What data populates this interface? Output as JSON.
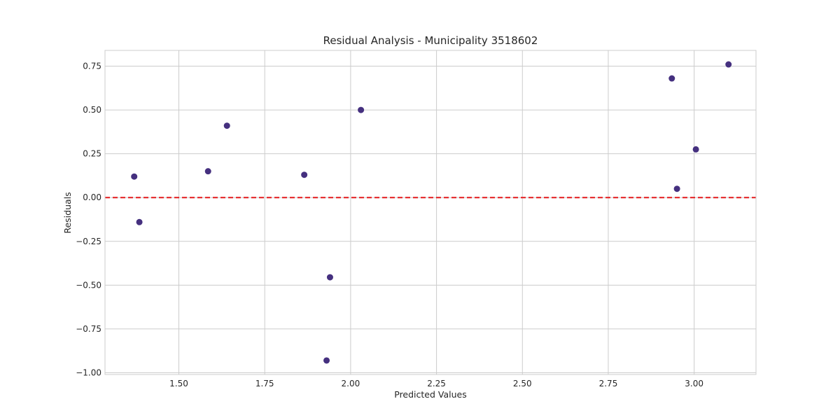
{
  "chart_data": {
    "type": "scatter",
    "title": "Residual Analysis - Municipality 3518602",
    "xlabel": "Predicted Values",
    "ylabel": "Residuals",
    "xlim": [
      1.285,
      3.18
    ],
    "ylim": [
      -1.01,
      0.84
    ],
    "xticks": [
      1.5,
      1.75,
      2.0,
      2.25,
      2.5,
      2.75,
      3.0
    ],
    "xtick_labels": [
      "1.50",
      "1.75",
      "2.00",
      "2.25",
      "2.50",
      "2.75",
      "3.00"
    ],
    "yticks": [
      0.75,
      0.5,
      0.25,
      0.0,
      -0.25,
      -0.5,
      -0.75,
      -1.0
    ],
    "ytick_labels": [
      "0.75",
      "0.50",
      "0.25",
      "0.00",
      "−0.25",
      "−0.50",
      "−0.75",
      "−1.00"
    ],
    "grid": true,
    "reference_line": {
      "y": 0.0,
      "style": "dashed",
      "color": "#e41a1c"
    },
    "series": [
      {
        "color": "#45307f",
        "points": [
          {
            "x": 1.37,
            "y": 0.12
          },
          {
            "x": 1.385,
            "y": -0.14
          },
          {
            "x": 1.585,
            "y": 0.15
          },
          {
            "x": 1.64,
            "y": 0.41
          },
          {
            "x": 1.865,
            "y": 0.13
          },
          {
            "x": 1.93,
            "y": -0.93
          },
          {
            "x": 1.94,
            "y": -0.455
          },
          {
            "x": 2.03,
            "y": 0.5
          },
          {
            "x": 2.935,
            "y": 0.68
          },
          {
            "x": 2.95,
            "y": 0.05
          },
          {
            "x": 3.005,
            "y": 0.275
          },
          {
            "x": 3.1,
            "y": 0.76
          }
        ]
      }
    ]
  }
}
